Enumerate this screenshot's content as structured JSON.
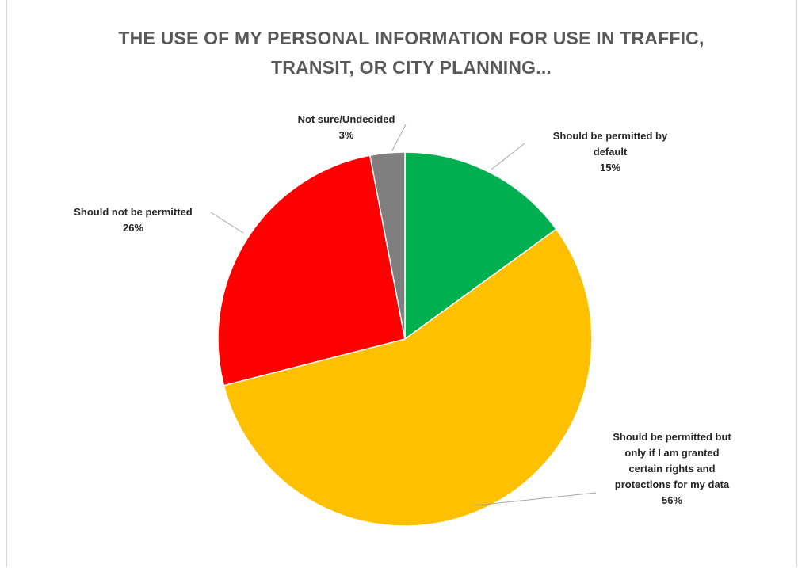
{
  "colors": {
    "permitted_default": "#00b050",
    "permitted_with_rights": "#ffc000",
    "not_permitted": "#ff0000",
    "not_sure": "#7f7f7f",
    "leader": "#a6a6a6"
  },
  "chart_data": {
    "type": "pie",
    "title": "THE USE OF MY PERSONAL INFORMATION FOR USE IN TRAFFIC, TRANSIT, OR CITY PLANNING...",
    "title_lines": [
      "THE USE OF MY PERSONAL INFORMATION FOR USE IN TRAFFIC,",
      "TRANSIT, OR CITY PLANNING..."
    ],
    "start": "12 o'clock, clockwise",
    "slices": [
      {
        "label": "Should be permitted by default",
        "label_lines": [
          "Should be permitted by",
          "default"
        ],
        "value": 15,
        "value_label": "15%",
        "color_key": "permitted_default"
      },
      {
        "label": "Should be permitted but only if I am granted certain rights and protections for my data",
        "label_lines": [
          "Should be permitted but",
          "only if I am granted",
          "certain rights and",
          "protections for my data"
        ],
        "value": 56,
        "value_label": "56%",
        "color_key": "permitted_with_rights"
      },
      {
        "label": "Should not be permitted",
        "label_lines": [
          "Should not be permitted"
        ],
        "value": 26,
        "value_label": "26%",
        "color_key": "not_permitted"
      },
      {
        "label": "Not sure/Undecided",
        "label_lines": [
          "Not sure/Undecided"
        ],
        "value": 3,
        "value_label": "3%",
        "color_key": "not_sure"
      }
    ]
  }
}
